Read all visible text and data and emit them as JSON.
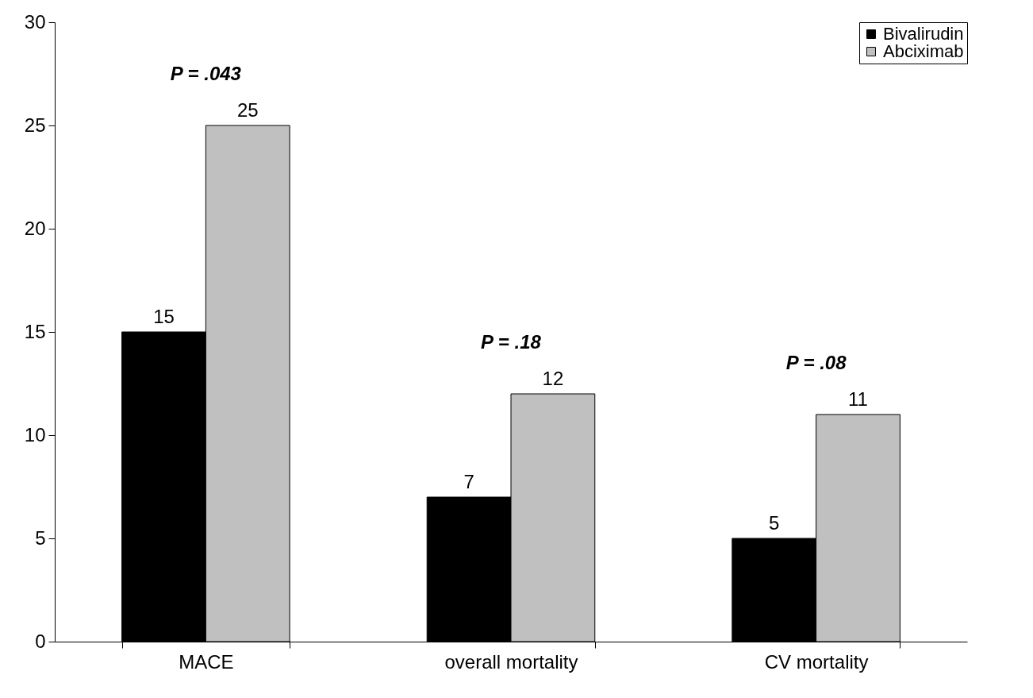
{
  "chart_data": {
    "type": "bar",
    "categories": [
      "MACE",
      "overall mortality",
      "CV mortality"
    ],
    "series": [
      {
        "name": "Bivalirudin",
        "color": "#000000",
        "values": [
          15,
          7,
          5
        ]
      },
      {
        "name": "Abciximab",
        "color": "#c0c0c0",
        "values": [
          25,
          12,
          11
        ]
      }
    ],
    "ylim": [
      0,
      30
    ],
    "yticks": [
      0,
      5,
      10,
      15,
      20,
      25,
      30
    ],
    "data_labels": true,
    "legend": "top right",
    "grid": false,
    "annotations": [
      "P = .043",
      "P = .18",
      "P = .08"
    ]
  }
}
